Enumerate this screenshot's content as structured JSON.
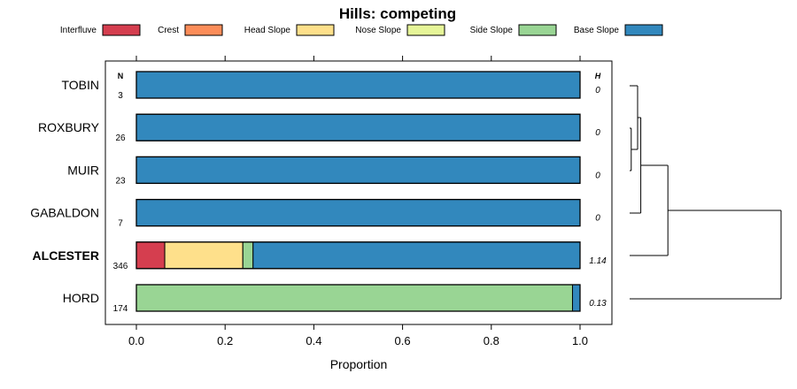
{
  "chart_data": {
    "type": "bar",
    "orientation": "horizontal-stacked",
    "title": "Hills: competing",
    "xlabel": "Proportion",
    "ylabel": "",
    "xlim": [
      -0.07,
      1.07
    ],
    "x_ticks": [
      0.0,
      0.2,
      0.4,
      0.6,
      0.8,
      1.0
    ],
    "x_tick_labels": [
      "0.0",
      "0.2",
      "0.4",
      "0.6",
      "0.8",
      "1.0"
    ],
    "n_header": "N",
    "h_header": "H",
    "legend": [
      {
        "name": "Interfluve",
        "color": "#d53e4f"
      },
      {
        "name": "Crest",
        "color": "#fc8d59"
      },
      {
        "name": "Head Slope",
        "color": "#fee08b"
      },
      {
        "name": "Nose Slope",
        "color": "#e6f598"
      },
      {
        "name": "Side Slope",
        "color": "#99d594"
      },
      {
        "name": "Base Slope",
        "color": "#3288bd"
      }
    ],
    "categories": [
      {
        "label": "TOBIN",
        "n": "3",
        "h": "0",
        "bold": false,
        "values": {
          "Interfluve": 0,
          "Crest": 0,
          "Head Slope": 0,
          "Nose Slope": 0,
          "Side Slope": 0,
          "Base Slope": 1.0
        }
      },
      {
        "label": "ROXBURY",
        "n": "26",
        "h": "0",
        "bold": false,
        "values": {
          "Interfluve": 0,
          "Crest": 0,
          "Head Slope": 0,
          "Nose Slope": 0,
          "Side Slope": 0,
          "Base Slope": 1.0
        }
      },
      {
        "label": "MUIR",
        "n": "23",
        "h": "0",
        "bold": false,
        "values": {
          "Interfluve": 0,
          "Crest": 0,
          "Head Slope": 0,
          "Nose Slope": 0,
          "Side Slope": 0,
          "Base Slope": 1.0
        }
      },
      {
        "label": "GABALDON",
        "n": "7",
        "h": "0",
        "bold": false,
        "values": {
          "Interfluve": 0,
          "Crest": 0,
          "Head Slope": 0,
          "Nose Slope": 0,
          "Side Slope": 0,
          "Base Slope": 1.0
        }
      },
      {
        "label": "ALCESTER",
        "n": "346",
        "h": "1.14",
        "bold": true,
        "values": {
          "Interfluve": 0.064,
          "Crest": 0,
          "Head Slope": 0.176,
          "Nose Slope": 0,
          "Side Slope": 0.023,
          "Base Slope": 0.737
        }
      },
      {
        "label": "HORD",
        "n": "174",
        "h": "0.13",
        "bold": false,
        "values": {
          "Interfluve": 0,
          "Crest": 0,
          "Head Slope": 0,
          "Nose Slope": 0,
          "Side Slope": 0.983,
          "Base Slope": 0.017
        }
      }
    ],
    "dendrogram": {
      "leaves": [
        "TOBIN",
        "ROXBURY",
        "MUIR",
        "GABALDON",
        "ALCESTER",
        "HORD"
      ],
      "merges": [
        {
          "left": "ROXBURY",
          "right": "MUIR",
          "height": 0.01
        },
        {
          "left": "TOBIN",
          "right": "ROXBURY+MUIR",
          "height": 0.05
        },
        {
          "left": "TOBIN+ROXBURY+MUIR",
          "right": "GABALDON",
          "height": 0.07
        },
        {
          "left": "TOBIN+ROXBURY+MUIR+GABALDON",
          "right": "ALCESTER",
          "height": 0.24
        },
        {
          "left": "TOBIN+ROXBURY+MUIR+GABALDON+ALCESTER",
          "right": "HORD",
          "height": 0.95
        }
      ]
    }
  }
}
